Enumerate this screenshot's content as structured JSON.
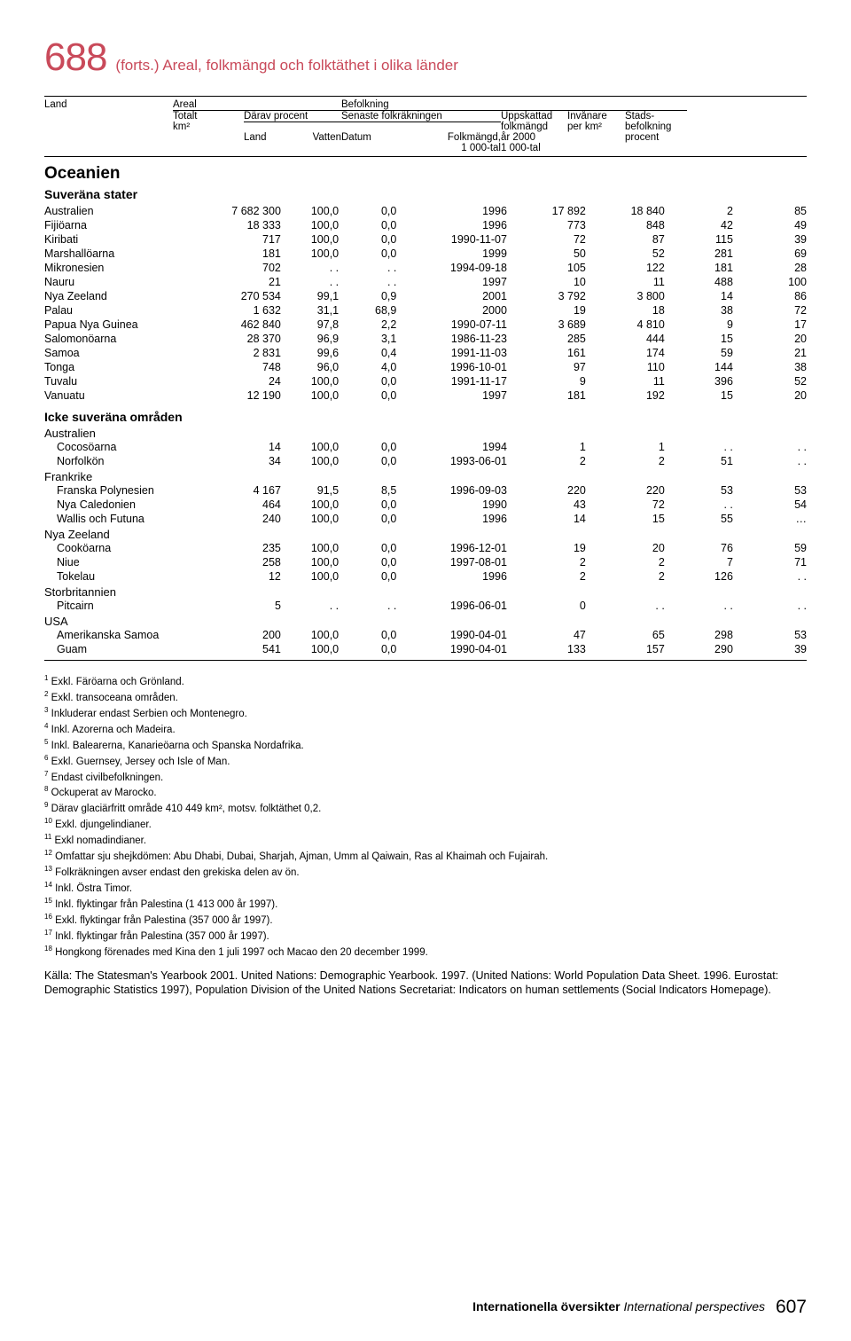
{
  "header": {
    "table_number": "688",
    "cont": "(forts.)",
    "title": "Areal, folkmängd och folktäthet i olika länder"
  },
  "columns": {
    "land": "Land",
    "areal": "Areal",
    "befolkning": "Befolkning",
    "totalt": "Totalt",
    "km2": "km²",
    "darav": "Därav procent",
    "land2": "Land",
    "vatten": "Vatten",
    "senaste": "Senaste folkräkningen",
    "datum": "Datum",
    "folkmangd": "Folkmängd,",
    "tal1": "1 000-tal",
    "uppskattad": "Uppskattad",
    "folkmangd2": "folkmängd",
    "ar2000": "år 2000",
    "tal2": "1 000-tal",
    "invanare": "Invånare",
    "perkm2": "per km²",
    "stads": "Stads-",
    "bef": "befolkning",
    "procent": "procent"
  },
  "section": "Oceanien",
  "sub1": "Suveräna stater",
  "sub2": "Icke suveräna områden",
  "sovereign": [
    [
      "Australien",
      "7 682 300",
      "100,0",
      "0,0",
      "1996",
      "17 892",
      "18 840",
      "2",
      "85"
    ],
    [
      "Fijiöarna",
      "18 333",
      "100,0",
      "0,0",
      "1996",
      "773",
      "848",
      "42",
      "49"
    ],
    [
      "Kiribati",
      "717",
      "100,0",
      "0,0",
      "1990-11-07",
      "72",
      "87",
      "115",
      "39"
    ],
    [
      "Marshallöarna",
      "181",
      "100,0",
      "0,0",
      "1999",
      "50",
      "52",
      "281",
      "69"
    ],
    [
      "Mikronesien",
      "702",
      ". .",
      ". .",
      "1994-09-18",
      "105",
      "122",
      "181",
      "28"
    ],
    [
      "Nauru",
      "21",
      ". .",
      ". .",
      "1997",
      "10",
      "11",
      "488",
      "100"
    ],
    [
      "Nya Zeeland",
      "270 534",
      "99,1",
      "0,9",
      "2001",
      "3 792",
      "3 800",
      "14",
      "86"
    ],
    [
      "Palau",
      "1 632",
      "31,1",
      "68,9",
      "2000",
      "19",
      "18",
      "38",
      "72"
    ],
    [
      "Papua Nya Guinea",
      "462 840",
      "97,8",
      "2,2",
      "1990-07-11",
      "3 689",
      "4 810",
      "9",
      "17"
    ],
    [
      "Salomonöarna",
      "28 370",
      "96,9",
      "3,1",
      "1986-11-23",
      "285",
      "444",
      "15",
      "20"
    ],
    [
      "Samoa",
      "2 831",
      "99,6",
      "0,4",
      "1991-11-03",
      "161",
      "174",
      "59",
      "21"
    ],
    [
      "Tonga",
      "748",
      "96,0",
      "4,0",
      "1996-10-01",
      "97",
      "110",
      "144",
      "38"
    ],
    [
      "Tuvalu",
      "24",
      "100,0",
      "0,0",
      "1991-11-17",
      "9",
      "11",
      "396",
      "52"
    ],
    [
      "Vanuatu",
      "12 190",
      "100,0",
      "0,0",
      "1997",
      "181",
      "192",
      "15",
      "20"
    ]
  ],
  "regions": [
    {
      "label": "Australien",
      "rows": [
        [
          "Cocosöarna",
          "14",
          "100,0",
          "0,0",
          "1994",
          "1",
          "1",
          ". .",
          ". ."
        ],
        [
          "Norfolkön",
          "34",
          "100,0",
          "0,0",
          "1993-06-01",
          "2",
          "2",
          "51",
          ". ."
        ]
      ]
    },
    {
      "label": "Frankrike",
      "rows": [
        [
          "Franska Polynesien",
          "4 167",
          "91,5",
          "8,5",
          "1996-09-03",
          "220",
          "220",
          "53",
          "53"
        ],
        [
          "Nya Caledonien",
          "464",
          "100,0",
          "0,0",
          "1990",
          "43",
          "72",
          ". .",
          "54"
        ],
        [
          "Wallis och Futuna",
          "240",
          "100,0",
          "0,0",
          "1996",
          "14",
          "15",
          "55",
          "…"
        ]
      ]
    },
    {
      "label": "Nya Zeeland",
      "rows": [
        [
          "Cooköarna",
          "235",
          "100,0",
          "0,0",
          "1996-12-01",
          "19",
          "20",
          "76",
          "59"
        ],
        [
          "Niue",
          "258",
          "100,0",
          "0,0",
          "1997-08-01",
          "2",
          "2",
          "7",
          "71"
        ],
        [
          "Tokelau",
          "12",
          "100,0",
          "0,0",
          "1996",
          "2",
          "2",
          "126",
          ". ."
        ]
      ]
    },
    {
      "label": "Storbritannien",
      "rows": [
        [
          "Pitcairn",
          "5",
          ". .",
          ". .",
          "1996-06-01",
          "0",
          ". .",
          ". .",
          ". ."
        ]
      ]
    },
    {
      "label": "USA",
      "rows": [
        [
          "Amerikanska Samoa",
          "200",
          "100,0",
          "0,0",
          "1990-04-01",
          "47",
          "65",
          "298",
          "53"
        ],
        [
          "Guam",
          "541",
          "100,0",
          "0,0",
          "1990-04-01",
          "133",
          "157",
          "290",
          "39"
        ]
      ]
    }
  ],
  "footnotes": [
    "Exkl. Färöarna och Grönland.",
    "Exkl. transoceana områden.",
    "Inkluderar endast Serbien och Montenegro.",
    "Inkl. Azorerna och Madeira.",
    "Inkl. Balearerna, Kanarieöarna och Spanska Nordafrika.",
    "Exkl. Guernsey, Jersey och Isle of Man.",
    "Endast civilbefolkningen.",
    "Ockuperat av Marocko.",
    "Därav glaciärfritt område 410 449 km², motsv. folktäthet 0,2.",
    "Exkl. djungelindianer.",
    "Exkl nomadindianer.",
    "Omfattar sju shejkdömen: Abu Dhabi, Dubai, Sharjah, Ajman, Umm al Qaiwain, Ras al Khaimah och Fujairah.",
    "Folkräkningen avser endast den grekiska delen av ön.",
    "Inkl. Östra Timor.",
    "Inkl. flyktingar från Palestina (1 413 000 år 1997).",
    "Exkl. flyktingar från Palestina (357 000 år 1997).",
    "Inkl. flyktingar från Palestina (357 000 år 1997).",
    "Hongkong förenades med Kina den 1 juli 1997 och Macao den 20 december 1999."
  ],
  "source": "Källa: The Statesman's Yearbook 2001. United Nations: Demographic Yearbook. 1997. (United Nations: World Population Data Sheet. 1996. Eurostat: Demographic Statistics 1997), Population Division of the United Nations Secretariat: Indicators on human settlements (Social Indicators Homepage).",
  "footer": {
    "label": "Internationella översikter",
    "italic": "International perspectives",
    "page": "607"
  }
}
